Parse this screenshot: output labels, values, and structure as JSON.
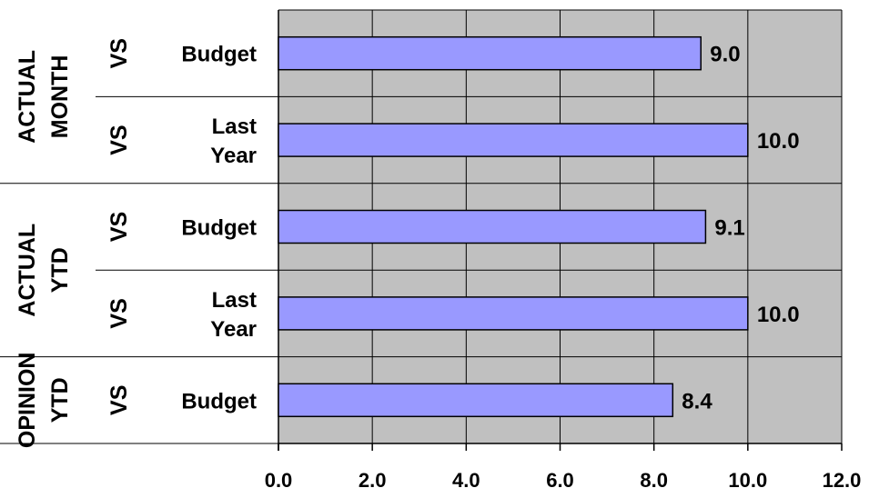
{
  "chart_data": {
    "type": "bar",
    "orientation": "horizontal",
    "groups": [
      {
        "label_lines": [
          "ACTUAL",
          "MONTH"
        ],
        "rows": [
          0,
          1
        ]
      },
      {
        "label_lines": [
          "ACTUAL",
          "YTD"
        ],
        "rows": [
          2,
          3
        ]
      },
      {
        "label_lines": [
          "OPINION",
          "YTD"
        ],
        "rows": [
          4
        ]
      }
    ],
    "rows": [
      {
        "vs": "VS",
        "label_lines": [
          "Budget"
        ],
        "value": 9.0,
        "value_label": "9.0"
      },
      {
        "vs": "VS",
        "label_lines": [
          "Last",
          "Year"
        ],
        "value": 10.0,
        "value_label": "10.0"
      },
      {
        "vs": "VS",
        "label_lines": [
          "Budget"
        ],
        "value": 9.1,
        "value_label": "9.1"
      },
      {
        "vs": "VS",
        "label_lines": [
          "Last",
          "Year"
        ],
        "value": 10.0,
        "value_label": "10.0"
      },
      {
        "vs": "VS",
        "label_lines": [
          "Budget"
        ],
        "value": 8.4,
        "value_label": "8.4"
      }
    ],
    "xlim": [
      0,
      12
    ],
    "xticks": [
      0,
      2,
      4,
      6,
      8,
      10,
      12
    ],
    "xtick_labels": [
      "0.0",
      "2.0",
      "4.0",
      "6.0",
      "8.0",
      "10.0",
      "12.0"
    ],
    "grid": true,
    "colors": {
      "bar_fill": "#9999ff",
      "plot_background": "#c0c0c0",
      "grid": "#000000",
      "text": "#000000"
    }
  }
}
